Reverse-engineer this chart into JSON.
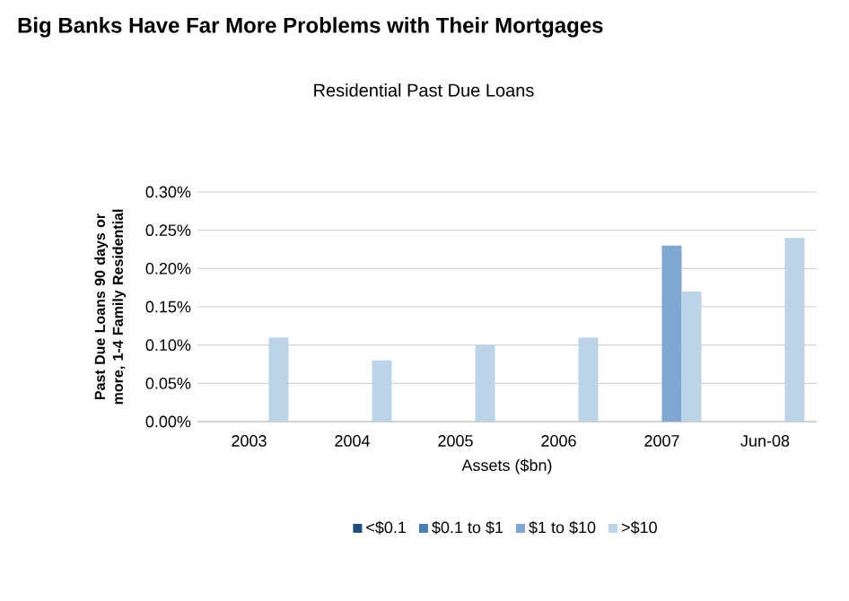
{
  "chart_data": {
    "type": "bar",
    "title": "Big Banks Have Far More Problems with Their Mortgages",
    "subtitle": "Residential Past Due Loans",
    "xlabel": "Assets ($bn)",
    "ylabel": "Past Due Loans 90 days or more, 1-4 Family Residential",
    "categories": [
      "2003",
      "2004",
      "2005",
      "2006",
      "2007",
      "Jun-08"
    ],
    "series": [
      {
        "name": "<$0.1",
        "color": "#1f4e79",
        "values": [
          0,
          0,
          0,
          0,
          0,
          0
        ]
      },
      {
        "name": "$0.1 to $1",
        "color": "#4a7eb0",
        "values": [
          0,
          0,
          0,
          0,
          0,
          0
        ]
      },
      {
        "name": "$1 to $10",
        "color": "#7fa7cf",
        "values": [
          0,
          0,
          0,
          0,
          0.23,
          0
        ]
      },
      {
        "name": ">$10",
        "color": "#bdd3e8",
        "values": [
          0.11,
          0.08,
          0.1,
          0.11,
          0.17,
          0.24
        ]
      }
    ],
    "ylim": [
      0,
      0.3
    ],
    "yticks": [
      {
        "value": 0,
        "label": "0.00%"
      },
      {
        "value": 0.05,
        "label": "0.05%"
      },
      {
        "value": 0.1,
        "label": "0.10%"
      },
      {
        "value": 0.15,
        "label": "0.15%"
      },
      {
        "value": 0.2,
        "label": "0.20%"
      },
      {
        "value": 0.25,
        "label": "0.25%"
      },
      {
        "value": 0.3,
        "label": "0.30%"
      }
    ],
    "grid": "y",
    "legend": "bottom"
  }
}
